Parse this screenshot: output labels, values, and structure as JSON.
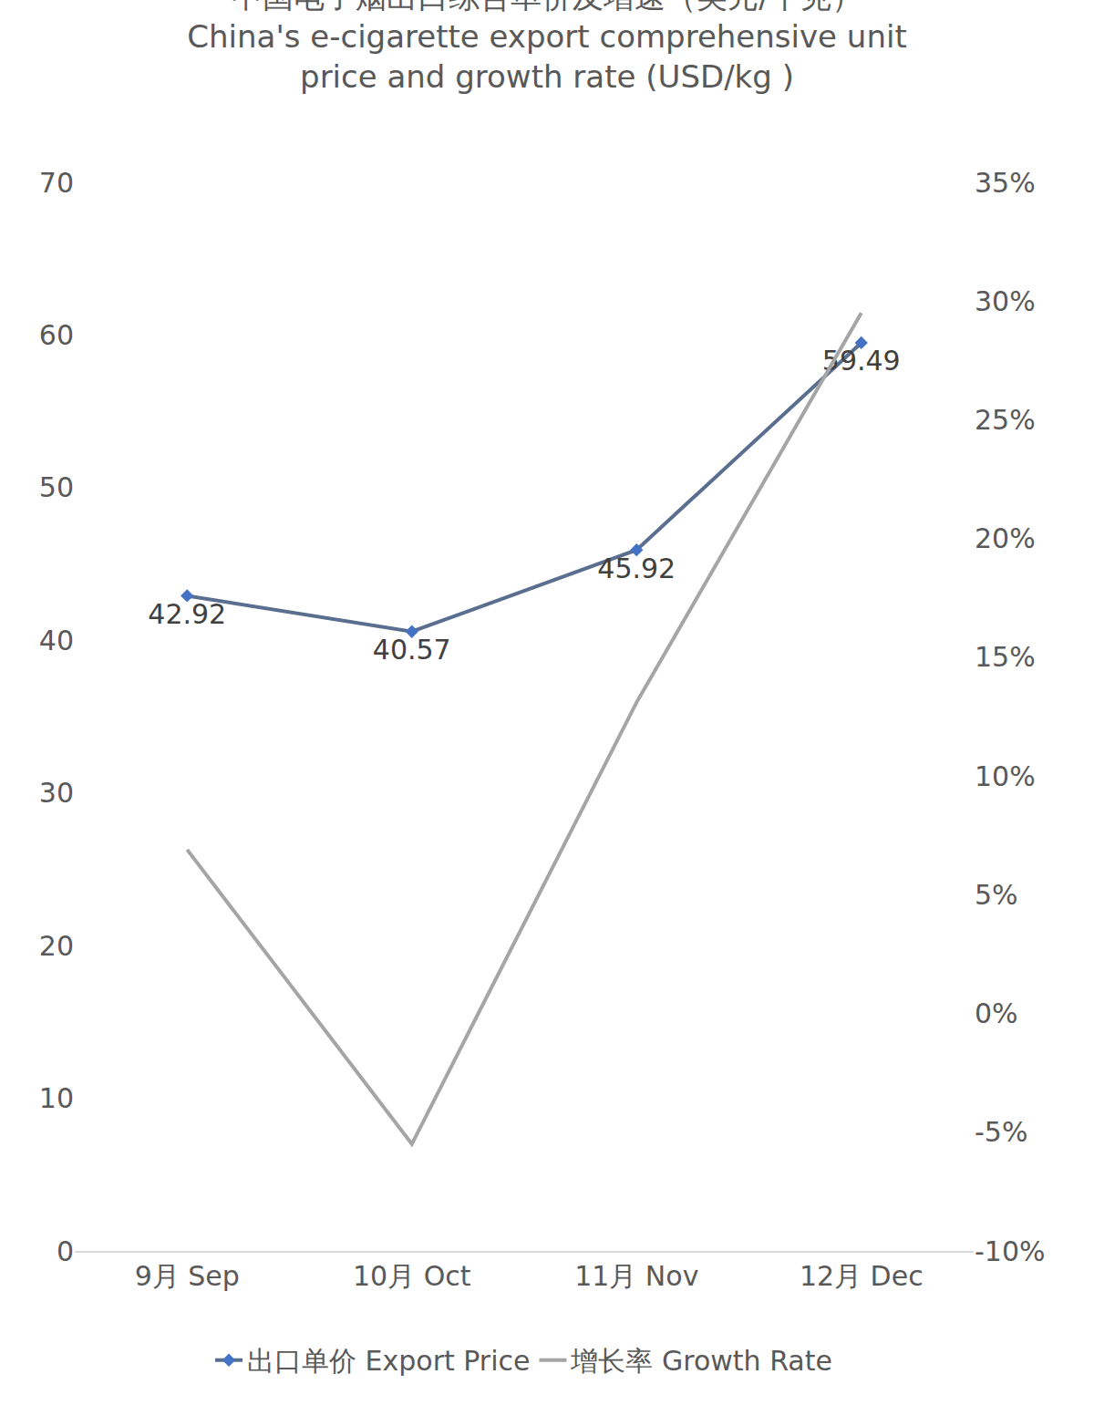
{
  "chart_data": {
    "type": "line",
    "title": "中国电子烟出口综合单价及增速（美元/千克）",
    "subtitle": "China's e-cigarette export comprehensive unit price and growth rate (USD/kg )",
    "categories": [
      "9月 Sep",
      "10月 Oct",
      "11月 Nov",
      "12月 Dec"
    ],
    "series": [
      {
        "name": "出口单价 Export Price",
        "color": "#5a6f8f",
        "marker": "diamond",
        "line_style": "solid",
        "data_labels": true,
        "values": [
          42.92,
          40.57,
          45.92,
          59.49
        ]
      },
      {
        "name": "增长率 Growth Rate",
        "color": "#a5a5a5",
        "line_style": "solid",
        "axis": "y2",
        "values": [
          6.9,
          -5.5,
          13.1,
          29.5
        ]
      }
    ],
    "ylim": [
      0,
      70
    ],
    "yticks": [
      0,
      10,
      20,
      30,
      40,
      50,
      60,
      70
    ],
    "y2lim": [
      -10,
      35
    ],
    "y2ticks": [
      {
        "value": -10,
        "label": "-10%"
      },
      {
        "value": -5,
        "label": "-5%"
      },
      {
        "value": 0,
        "label": "0%"
      },
      {
        "value": 5,
        "label": "5%"
      },
      {
        "value": 10,
        "label": "10%"
      },
      {
        "value": 15,
        "label": "15%"
      },
      {
        "value": 20,
        "label": "20%"
      },
      {
        "value": 25,
        "label": "25%"
      },
      {
        "value": 30,
        "label": "30%"
      },
      {
        "value": 35,
        "label": "35%"
      }
    ],
    "grid": false,
    "legend": "bottom"
  }
}
